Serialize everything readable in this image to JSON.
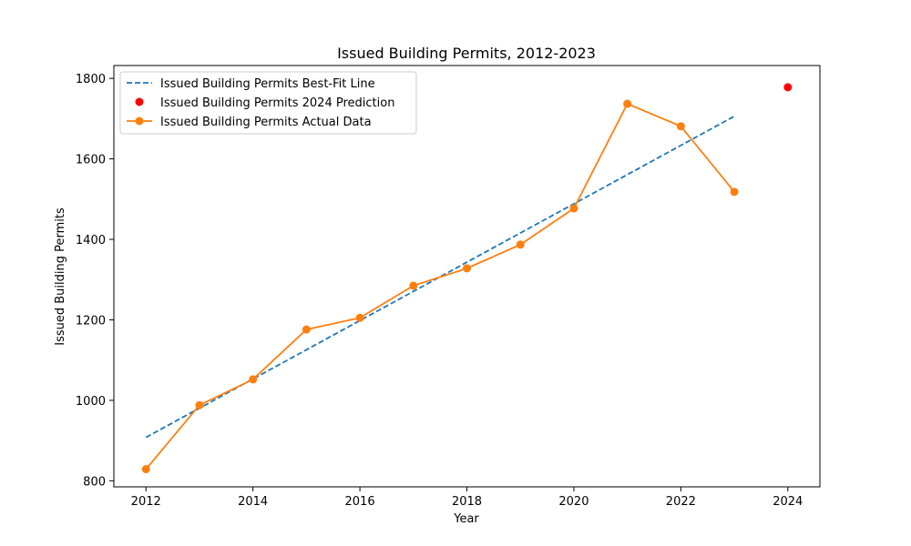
{
  "chart_data": {
    "type": "line",
    "title": "Issued Building Permits, 2012-2023",
    "xlabel": "Year",
    "ylabel": "Issued Building Permits",
    "xlim": [
      2011.4,
      2024.6
    ],
    "ylim": [
      785,
      1832
    ],
    "x_ticks": [
      2012,
      2014,
      2016,
      2018,
      2020,
      2022,
      2024
    ],
    "y_ticks": [
      800,
      1000,
      1200,
      1400,
      1600,
      1800
    ],
    "grid": false,
    "legend_position": "top-left",
    "series": [
      {
        "name": "Issued Building Permits Best-Fit Line",
        "kind": "line",
        "style": "dashed",
        "color": "#1f77b4",
        "x": [
          2012,
          2023
        ],
        "y": [
          908,
          1706
        ]
      },
      {
        "name": "Issued Building Permits 2024 Prediction",
        "kind": "scatter",
        "color": "#ff0000",
        "x": [
          2024
        ],
        "y": [
          1778
        ]
      },
      {
        "name": "Issued Building Permits Actual Data",
        "kind": "line-markers",
        "color": "#ff7f0e",
        "x": [
          2012,
          2013,
          2014,
          2015,
          2016,
          2017,
          2018,
          2019,
          2020,
          2021,
          2022,
          2023
        ],
        "y": [
          829,
          988,
          1052,
          1176,
          1205,
          1285,
          1328,
          1387,
          1477,
          1737,
          1681,
          1518
        ]
      }
    ]
  }
}
